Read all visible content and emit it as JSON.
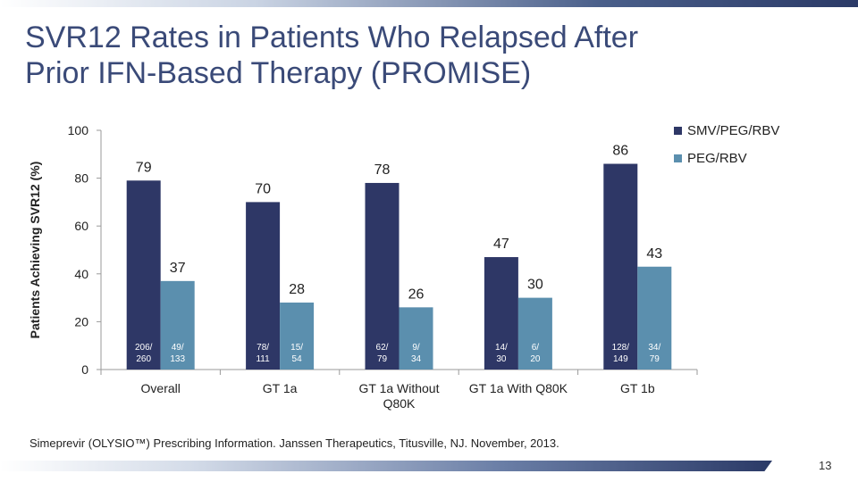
{
  "slide": {
    "title_line1": "SVR12 Rates in Patients Who Relapsed After",
    "title_line2": "Prior IFN-Based Therapy (PROMISE)",
    "footnote": "Simeprevir (OLYSIO™) Prescribing Information. Janssen Therapeutics, Titusville, NJ. November, 2013.",
    "slide_number": "13"
  },
  "chart_data": {
    "type": "bar",
    "ylabel": "Patients Achieving SVR12 (%)",
    "xlabel": "",
    "ylim": [
      0,
      100
    ],
    "yticks": [
      0,
      20,
      40,
      60,
      80,
      100
    ],
    "legend_position": "top-right",
    "grid": false,
    "categories": [
      [
        "Overall"
      ],
      [
        "GT 1a"
      ],
      [
        "GT 1a Without",
        "Q80K"
      ],
      [
        "GT 1a With Q80K"
      ],
      [
        "GT 1b"
      ]
    ],
    "series": [
      {
        "name": "SMV/PEG/RBV",
        "color": "#2e3766",
        "values": [
          79,
          70,
          78,
          47,
          86
        ],
        "fractions": [
          [
            "206/",
            "260"
          ],
          [
            "78/",
            "111"
          ],
          [
            "62/",
            "79"
          ],
          [
            "14/",
            "30"
          ],
          [
            "128/",
            "149"
          ]
        ]
      },
      {
        "name": "PEG/RBV",
        "color": "#5b8fae",
        "values": [
          37,
          28,
          26,
          30,
          43
        ],
        "fractions": [
          [
            "49/",
            "133"
          ],
          [
            "15/",
            "54"
          ],
          [
            "9/",
            "34"
          ],
          [
            "6/",
            "20"
          ],
          [
            "34/",
            "79"
          ]
        ]
      }
    ]
  }
}
